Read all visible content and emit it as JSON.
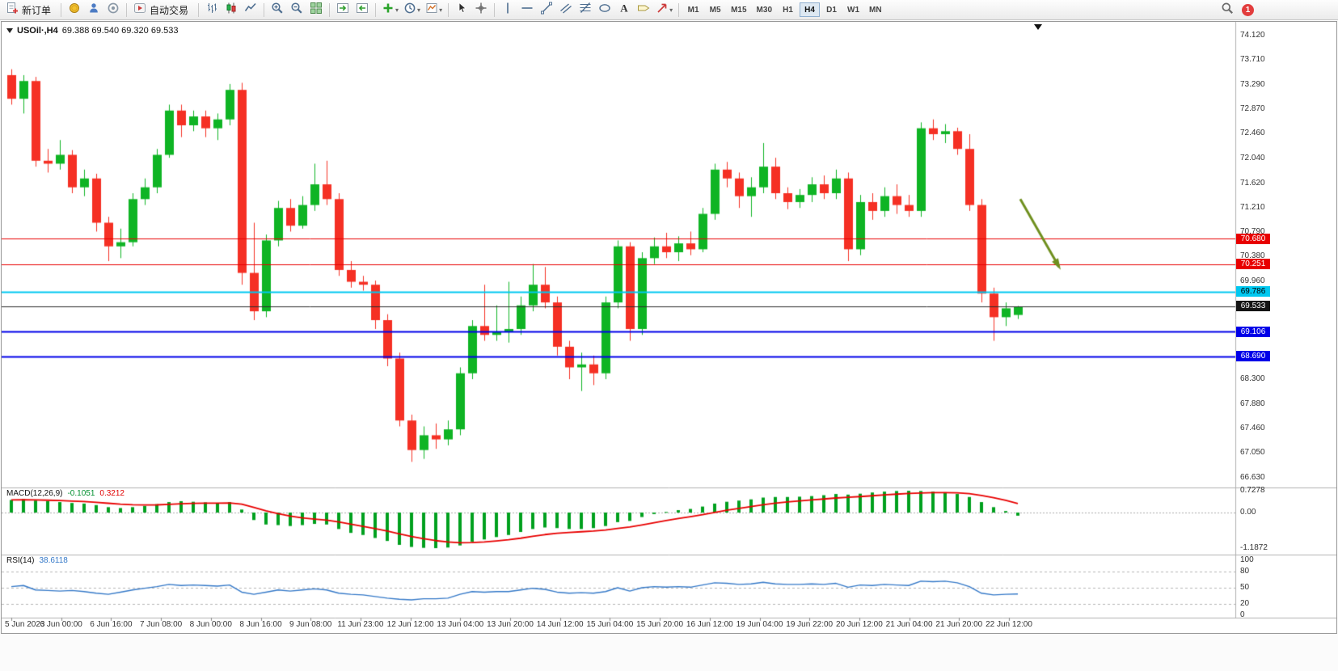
{
  "toolbar": {
    "badge": "1",
    "groups": [
      {
        "items": [
          {
            "name": "new-order-button",
            "icon": "new-order",
            "label": "新订单"
          }
        ]
      },
      {
        "items": [
          {
            "name": "market-watch-button",
            "icon": "coin"
          },
          {
            "name": "navigator-button",
            "icon": "person"
          },
          {
            "name": "community-button",
            "icon": "community"
          }
        ]
      },
      {
        "items": [
          {
            "name": "autotrading-button",
            "icon": "autotrade",
            "label": "自动交易"
          }
        ]
      },
      {
        "items": [
          {
            "name": "bar-chart-button",
            "icon": "chart-bars"
          },
          {
            "name": "candle-chart-button",
            "icon": "chart-candles"
          },
          {
            "name": "line-chart-button",
            "icon": "chart-line"
          }
        ]
      },
      {
        "items": [
          {
            "name": "zoom-in-button",
            "icon": "zoom-in"
          },
          {
            "name": "zoom-out-button",
            "icon": "zoom-out"
          },
          {
            "name": "tile-windows-button",
            "icon": "tile"
          }
        ]
      },
      {
        "items": [
          {
            "name": "auto-scroll-button",
            "icon": "arrange-a"
          },
          {
            "name": "chart-shift-button",
            "icon": "arrange-b"
          }
        ]
      },
      {
        "items": [
          {
            "name": "indicators-button",
            "icon": "indicators",
            "caret": true
          },
          {
            "name": "periods-button",
            "icon": "clock",
            "caret": true
          },
          {
            "name": "templates-button",
            "icon": "template",
            "caret": true
          }
        ]
      },
      {
        "items": [
          {
            "name": "cursor-tool",
            "icon": "cursor"
          },
          {
            "name": "crosshair-tool",
            "icon": "crosshair"
          }
        ]
      },
      {
        "items": [
          {
            "name": "vertical-line-tool",
            "icon": "vline"
          },
          {
            "name": "horizontal-line-tool",
            "icon": "hline"
          },
          {
            "name": "trendline-tool",
            "icon": "tline"
          },
          {
            "name": "channel-tool",
            "icon": "channel"
          },
          {
            "name": "fibonacci-tool",
            "icon": "fibo"
          },
          {
            "name": "shapes-tool",
            "icon": "shapes"
          },
          {
            "name": "text-tool",
            "icon": "text"
          },
          {
            "name": "label-tool",
            "icon": "label"
          },
          {
            "name": "arrows-tool",
            "icon": "arrows",
            "caret": true
          }
        ]
      },
      {
        "items": [
          {
            "name": "tf-m1",
            "tf": true,
            "label": "M1"
          },
          {
            "name": "tf-m5",
            "tf": true,
            "label": "M5"
          },
          {
            "name": "tf-m15",
            "tf": true,
            "label": "M15"
          },
          {
            "name": "tf-m30",
            "tf": true,
            "label": "M30"
          },
          {
            "name": "tf-h1",
            "tf": true,
            "label": "H1"
          },
          {
            "name": "tf-h4",
            "tf": true,
            "label": "H4",
            "active": true
          },
          {
            "name": "tf-d1",
            "tf": true,
            "label": "D1"
          },
          {
            "name": "tf-w1",
            "tf": true,
            "label": "W1"
          },
          {
            "name": "tf-mn",
            "tf": true,
            "label": "MN"
          }
        ]
      }
    ]
  },
  "chart_data": [
    {
      "type": "candlestick",
      "title": "USOil·,H4",
      "ohlc_text": "69.388 69.540 69.320 69.533",
      "current": {
        "open": 69.388,
        "high": 69.54,
        "low": 69.32,
        "close": 69.533
      },
      "timeframe": "H4",
      "colors": {
        "up": "#0fb424",
        "down": "#f53024"
      },
      "y_axis": {
        "min": 66.63,
        "max": 74.12,
        "labels": [
          "74.120",
          "73.710",
          "73.290",
          "72.870",
          "72.460",
          "72.040",
          "71.620",
          "71.210",
          "70.790",
          "70.380",
          "69.960",
          "69.540",
          "69.120",
          "68.710",
          "68.300",
          "67.880",
          "67.460",
          "67.050",
          "66.630"
        ]
      },
      "x_labels": [
        "5 Jun 2023",
        "6 Jun 00:00",
        "6 Jun 16:00",
        "7 Jun 08:00",
        "8 Jun 00:00",
        "8 Jun 16:00",
        "9 Jun 08:00",
        "11 Jun 23:00",
        "12 Jun 12:00",
        "13 Jun 04:00",
        "13 Jun 20:00",
        "14 Jun 12:00",
        "15 Jun 04:00",
        "15 Jun 20:00",
        "16 Jun 12:00",
        "19 Jun 04:00",
        "19 Jun 22:00",
        "20 Jun 12:00",
        "21 Jun 04:00",
        "21 Jun 20:00",
        "22 Jun 12:00"
      ],
      "candles": [
        [
          73.45,
          73.55,
          72.95,
          73.05
        ],
        [
          73.05,
          73.45,
          72.8,
          73.35
        ],
        [
          73.35,
          73.42,
          71.9,
          72.0
        ],
        [
          72.0,
          72.2,
          71.8,
          71.95
        ],
        [
          71.95,
          72.35,
          71.85,
          72.1
        ],
        [
          72.1,
          72.18,
          71.45,
          71.55
        ],
        [
          71.55,
          71.85,
          71.4,
          71.7
        ],
        [
          71.7,
          71.78,
          70.8,
          70.95
        ],
        [
          70.95,
          71.05,
          70.3,
          70.55
        ],
        [
          70.55,
          70.85,
          70.35,
          70.62
        ],
        [
          70.62,
          71.45,
          70.55,
          71.35
        ],
        [
          71.35,
          71.7,
          71.25,
          71.55
        ],
        [
          71.55,
          72.2,
          71.45,
          72.1
        ],
        [
          72.1,
          72.95,
          72.05,
          72.85
        ],
        [
          72.85,
          72.95,
          72.4,
          72.6
        ],
        [
          72.6,
          72.85,
          72.5,
          72.75
        ],
        [
          72.75,
          72.85,
          72.4,
          72.55
        ],
        [
          72.55,
          72.8,
          72.35,
          72.7
        ],
        [
          72.7,
          73.3,
          72.6,
          73.2
        ],
        [
          73.2,
          73.32,
          69.9,
          70.1
        ],
        [
          70.1,
          70.95,
          69.3,
          69.45
        ],
        [
          69.45,
          70.75,
          69.35,
          70.65
        ],
        [
          70.65,
          71.32,
          70.55,
          71.2
        ],
        [
          71.2,
          71.35,
          70.8,
          70.9
        ],
        [
          70.9,
          71.4,
          70.85,
          71.25
        ],
        [
          71.25,
          71.95,
          71.15,
          71.6
        ],
        [
          71.6,
          72.0,
          71.25,
          71.35
        ],
        [
          71.35,
          71.45,
          70.05,
          70.15
        ],
        [
          70.15,
          70.3,
          69.85,
          69.95
        ],
        [
          69.95,
          70.05,
          69.8,
          69.9
        ],
        [
          69.9,
          69.97,
          69.15,
          69.3
        ],
        [
          69.3,
          69.4,
          68.52,
          68.65
        ],
        [
          68.65,
          68.75,
          67.5,
          67.6
        ],
        [
          67.6,
          67.7,
          66.9,
          67.1
        ],
        [
          67.1,
          67.5,
          66.95,
          67.35
        ],
        [
          67.35,
          67.55,
          67.12,
          67.28
        ],
        [
          67.28,
          67.6,
          67.18,
          67.45
        ],
        [
          67.45,
          68.5,
          67.35,
          68.4
        ],
        [
          68.4,
          69.3,
          68.3,
          69.2
        ],
        [
          69.2,
          69.9,
          68.95,
          69.05
        ],
        [
          69.05,
          69.55,
          68.95,
          69.1
        ],
        [
          69.1,
          69.95,
          68.92,
          69.15
        ],
        [
          69.15,
          69.7,
          69.05,
          69.55
        ],
        [
          69.55,
          70.25,
          69.45,
          69.9
        ],
        [
          69.9,
          70.2,
          69.5,
          69.6
        ],
        [
          69.6,
          69.7,
          68.7,
          68.85
        ],
        [
          68.85,
          68.95,
          68.3,
          68.5
        ],
        [
          68.5,
          68.75,
          68.1,
          68.55
        ],
        [
          68.55,
          68.7,
          68.2,
          68.4
        ],
        [
          68.4,
          69.7,
          68.3,
          69.6
        ],
        [
          69.6,
          70.65,
          69.5,
          70.55
        ],
        [
          70.55,
          70.62,
          68.95,
          69.15
        ],
        [
          69.15,
          70.45,
          69.05,
          70.35
        ],
        [
          70.35,
          70.7,
          70.25,
          70.55
        ],
        [
          70.55,
          70.78,
          70.35,
          70.45
        ],
        [
          70.45,
          70.72,
          70.3,
          70.6
        ],
        [
          70.6,
          70.8,
          70.4,
          70.5
        ],
        [
          70.5,
          71.2,
          70.45,
          71.1
        ],
        [
          71.1,
          71.95,
          71.0,
          71.85
        ],
        [
          71.85,
          71.98,
          71.55,
          71.7
        ],
        [
          71.7,
          71.8,
          71.2,
          71.4
        ],
        [
          71.4,
          71.72,
          71.05,
          71.55
        ],
        [
          71.55,
          72.3,
          71.45,
          71.9
        ],
        [
          71.9,
          72.05,
          71.35,
          71.45
        ],
        [
          71.45,
          71.55,
          71.18,
          71.3
        ],
        [
          71.3,
          71.52,
          71.2,
          71.42
        ],
        [
          71.42,
          71.72,
          71.3,
          71.6
        ],
        [
          71.6,
          71.75,
          71.35,
          71.45
        ],
        [
          71.45,
          71.85,
          71.35,
          71.7
        ],
        [
          71.7,
          71.8,
          70.3,
          70.5
        ],
        [
          70.5,
          71.42,
          70.4,
          71.3
        ],
        [
          71.3,
          71.45,
          71.0,
          71.15
        ],
        [
          71.15,
          71.55,
          71.05,
          71.4
        ],
        [
          71.4,
          71.6,
          71.1,
          71.25
        ],
        [
          71.25,
          71.42,
          71.05,
          71.15
        ],
        [
          71.15,
          72.65,
          71.05,
          72.55
        ],
        [
          72.55,
          72.7,
          72.35,
          72.45
        ],
        [
          72.45,
          72.62,
          72.3,
          72.5
        ],
        [
          72.5,
          72.56,
          72.1,
          72.2
        ],
        [
          72.2,
          72.45,
          71.15,
          71.25
        ],
        [
          71.25,
          71.35,
          69.6,
          69.75
        ],
        [
          69.75,
          69.85,
          68.95,
          69.35
        ],
        [
          69.35,
          69.6,
          69.2,
          69.5
        ],
        [
          69.388,
          69.54,
          69.32,
          69.533
        ]
      ],
      "hlines": [
        {
          "price": 70.68,
          "color": "#e80000",
          "width": 1
        },
        {
          "price": 70.251,
          "color": "#e80000",
          "width": 1
        },
        {
          "price": 69.786,
          "color": "#00c8f0",
          "width": 2
        },
        {
          "price": 69.533,
          "color": "#2a2a2a",
          "width": 1
        },
        {
          "price": 69.106,
          "color": "#0000e8",
          "width": 2
        },
        {
          "price": 68.69,
          "color": "#0000e8",
          "width": 2
        }
      ],
      "tags": [
        {
          "text": "70.680",
          "bg": "#e80000",
          "fg": "#ffffff"
        },
        {
          "text": "70.251",
          "bg": "#e80000",
          "fg": "#ffffff"
        },
        {
          "text": "69.786",
          "bg": "#00c8f0",
          "fg": "#000000"
        },
        {
          "text": "69.533",
          "bg": "#141414",
          "fg": "#ffffff"
        },
        {
          "text": "69.106",
          "bg": "#0000e8",
          "fg": "#ffffff"
        },
        {
          "text": "68.690",
          "bg": "#0000e8",
          "fg": "#ffffff"
        }
      ],
      "arrow": {
        "x1_bar": 83.2,
        "price1": 71.35,
        "x2_bar": 86.4,
        "price2": 70.2,
        "color": "#6f8f1e"
      }
    },
    {
      "type": "macd",
      "title": "MACD(12,26,9)",
      "value_main": "-0.1051",
      "value_signal": "0.3212",
      "signal_period": 9,
      "axis_labels": [
        {
          "text": "0.7278",
          "value": 0.7278
        },
        {
          "text": "0.00",
          "value": 0
        },
        {
          "text": "-1.1872",
          "value": -1.1872
        }
      ],
      "colors": {
        "histogram": "#00a01e",
        "signal": "#e80000"
      },
      "histogram": [
        0.42,
        0.45,
        0.4,
        0.38,
        0.35,
        0.32,
        0.3,
        0.25,
        0.18,
        0.15,
        0.18,
        0.22,
        0.28,
        0.35,
        0.38,
        0.36,
        0.34,
        0.32,
        0.35,
        0.1,
        -0.25,
        -0.4,
        -0.42,
        -0.45,
        -0.42,
        -0.38,
        -0.4,
        -0.55,
        -0.68,
        -0.75,
        -0.85,
        -0.95,
        -1.08,
        -1.15,
        -1.18,
        -1.19,
        -1.17,
        -1.1,
        -0.98,
        -0.9,
        -0.82,
        -0.75,
        -0.65,
        -0.55,
        -0.5,
        -0.52,
        -0.55,
        -0.55,
        -0.52,
        -0.45,
        -0.32,
        -0.28,
        -0.15,
        -0.05,
        0.02,
        0.08,
        0.12,
        0.2,
        0.3,
        0.36,
        0.4,
        0.44,
        0.5,
        0.52,
        0.52,
        0.53,
        0.55,
        0.58,
        0.62,
        0.6,
        0.63,
        0.67,
        0.7,
        0.72,
        0.7278,
        0.72,
        0.7,
        0.68,
        0.62,
        0.52,
        0.35,
        0.18,
        0.05,
        -0.1051
      ]
    },
    {
      "type": "rsi",
      "title": "RSI(14)",
      "value": "38.6118",
      "color": "#3579c8",
      "levels": [
        80,
        50,
        20
      ],
      "axis_labels": [
        {
          "text": "100",
          "value": 100
        },
        {
          "text": "80",
          "value": 80
        },
        {
          "text": "50",
          "value": 50
        },
        {
          "text": "20",
          "value": 20
        },
        {
          "text": "0",
          "value": 0
        }
      ],
      "values": [
        52,
        54,
        46,
        45,
        44,
        45,
        43,
        40,
        38,
        42,
        46,
        49,
        52,
        56,
        54,
        55,
        54,
        53,
        55,
        42,
        38,
        42,
        46,
        44,
        46,
        48,
        46,
        40,
        38,
        37,
        34,
        31,
        29,
        28,
        30,
        30,
        31,
        38,
        43,
        42,
        43,
        43,
        46,
        49,
        47,
        42,
        40,
        41,
        40,
        43,
        50,
        44,
        50,
        52,
        51,
        52,
        51,
        55,
        59,
        58,
        56,
        57,
        60,
        57,
        56,
        56,
        57,
        56,
        58,
        51,
        55,
        54,
        56,
        55,
        54,
        62,
        61,
        62,
        59,
        52,
        40,
        37,
        38,
        38.61
      ]
    }
  ]
}
